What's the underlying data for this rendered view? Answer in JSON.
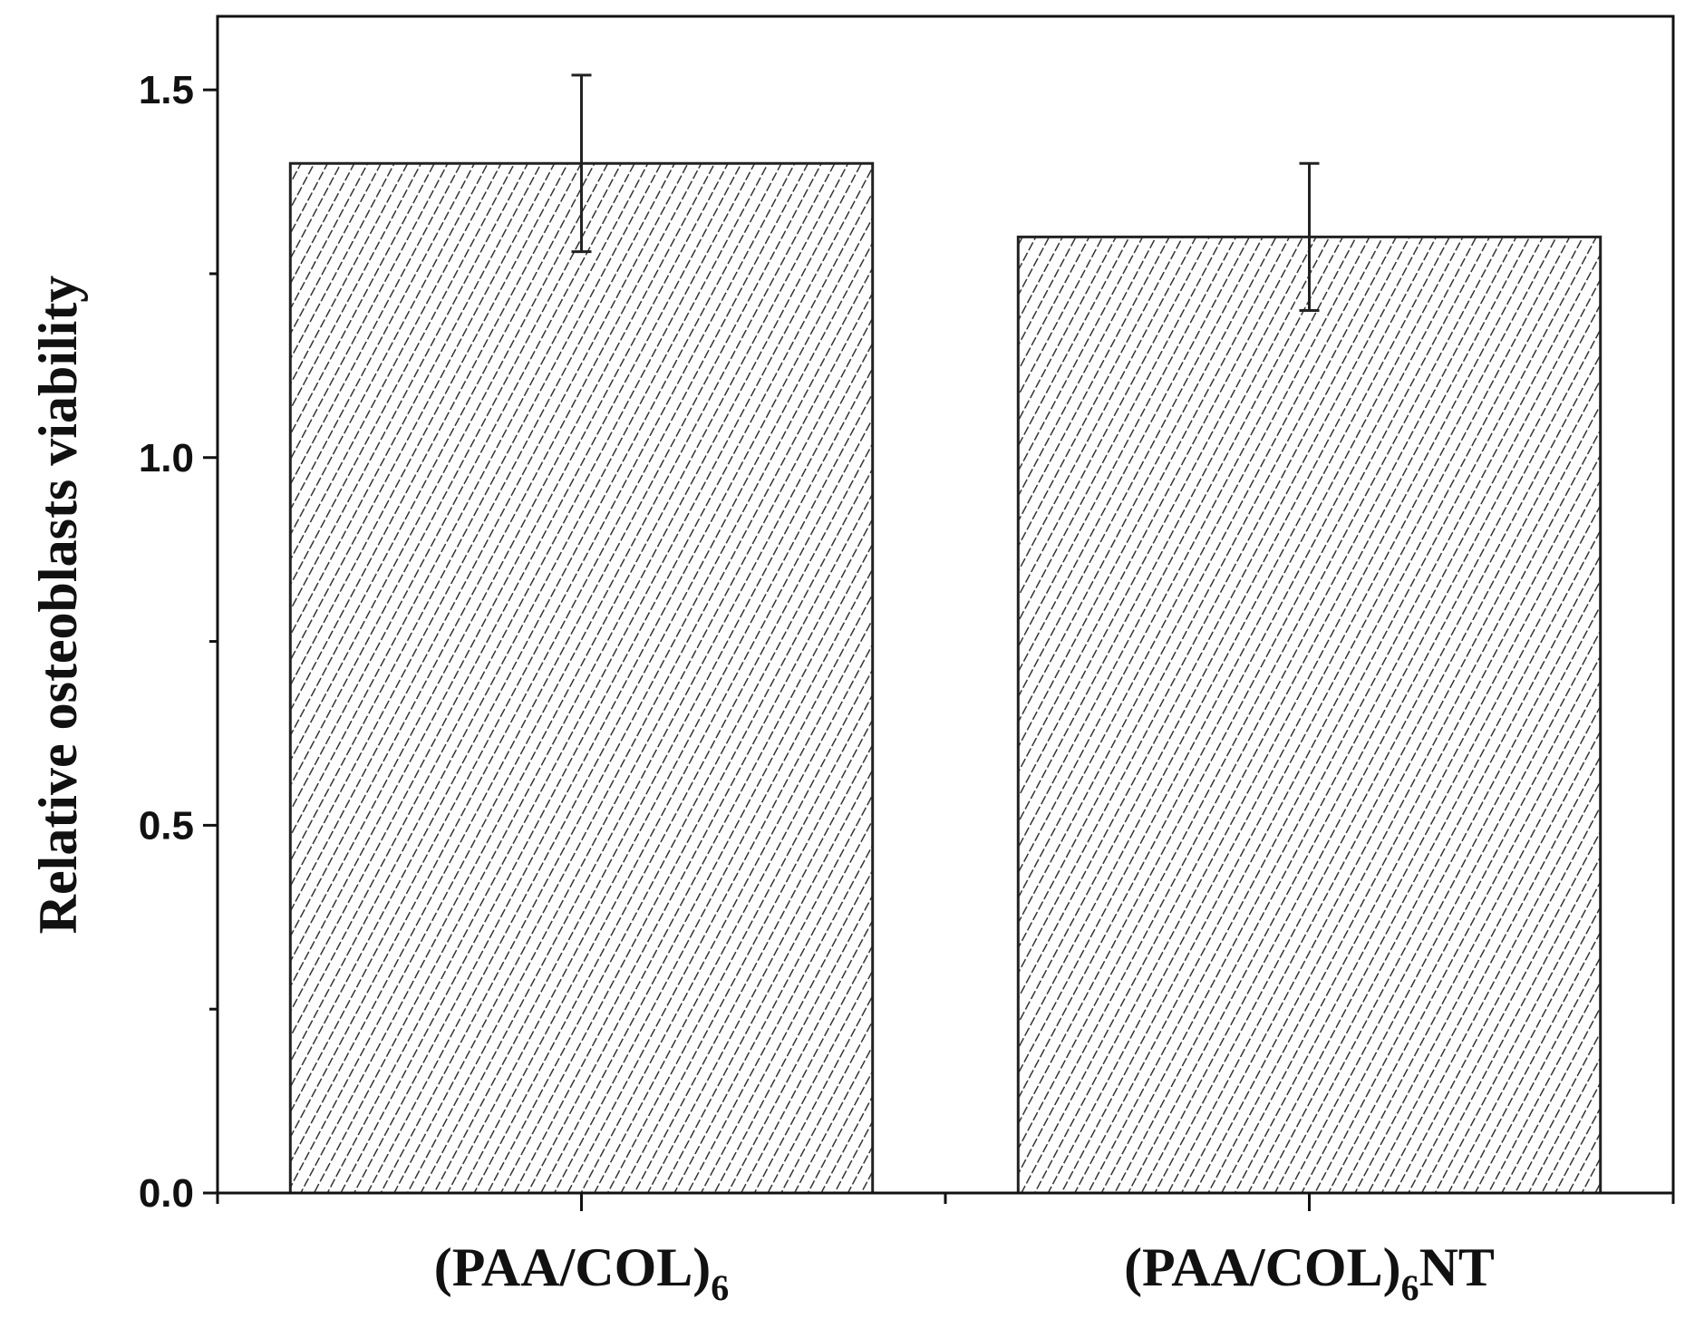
{
  "chart_data": {
    "type": "bar",
    "title": "",
    "xlabel": "",
    "ylabel": "Relative osteoblasts viability",
    "ylim": [
      0.0,
      1.6
    ],
    "yticks": [
      "0.0",
      "0.5",
      "1.0",
      "1.5"
    ],
    "grid": false,
    "categories": [
      {
        "main": "(PAA/COL)",
        "sub": "6",
        "suffix": ""
      },
      {
        "main": "(PAA/COL)",
        "sub": "6",
        "suffix": "NT"
      }
    ],
    "values": [
      1.4,
      1.3
    ],
    "errors": [
      0.12,
      0.1
    ],
    "bar_fill": "hatched",
    "colors": {
      "bar_stroke": "#222222",
      "hatch": "#333333",
      "axis": "#111111"
    }
  }
}
